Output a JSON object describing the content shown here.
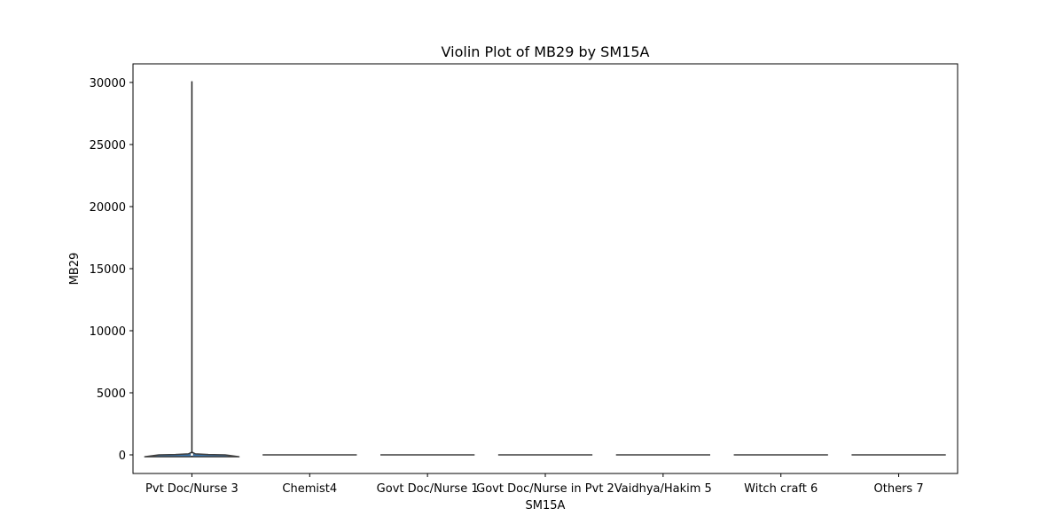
{
  "chart_data": {
    "type": "violin",
    "title": "Violin Plot of MB29 by SM15A",
    "xlabel": "SM15A",
    "ylabel": "MB29",
    "categories": [
      "Pvt Doc/Nurse 3",
      "Chemist4",
      "Govt Doc/Nurse 1",
      "Govt Doc/Nurse in Pvt 2",
      "Vaidhya/Hakim 5",
      "Witch craft 6",
      "Others 7"
    ],
    "ylim": [
      -1500,
      31500
    ],
    "yticks": [
      0,
      5000,
      10000,
      15000,
      20000,
      25000,
      30000
    ],
    "ytick_labels": [
      "0",
      "5000",
      "10000",
      "15000",
      "20000",
      "25000",
      "30000"
    ],
    "series": [
      {
        "category": "Pvt Doc/Nurse 3",
        "min": -150,
        "max": 30100,
        "q1": 0,
        "median": 30,
        "q3": 80
      },
      {
        "category": "Chemist4",
        "min": 0,
        "max": 0,
        "q1": 0,
        "median": 0,
        "q3": 0
      },
      {
        "category": "Govt Doc/Nurse 1",
        "min": 0,
        "max": 0,
        "q1": 0,
        "median": 0,
        "q3": 0
      },
      {
        "category": "Govt Doc/Nurse in Pvt 2",
        "min": 0,
        "max": 0,
        "q1": 0,
        "median": 0,
        "q3": 0
      },
      {
        "category": "Vaidhya/Hakim 5",
        "min": 0,
        "max": 0,
        "q1": 0,
        "median": 0,
        "q3": 0
      },
      {
        "category": "Witch craft 6",
        "min": 0,
        "max": 0,
        "q1": 0,
        "median": 0,
        "q3": 0
      },
      {
        "category": "Others 7",
        "min": 0,
        "max": 0,
        "q1": 0,
        "median": 0,
        "q3": 0
      }
    ],
    "grid": false,
    "colors": {
      "violin_fill": "#3a76af",
      "line": "#3f3f3f",
      "axis": "#000000"
    }
  }
}
